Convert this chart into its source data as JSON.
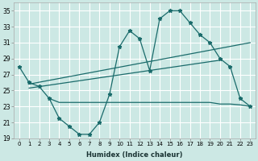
{
  "xlabel": "Humidex (Indice chaleur)",
  "x": [
    0,
    1,
    2,
    3,
    4,
    5,
    6,
    7,
    8,
    9,
    10,
    11,
    12,
    13,
    14,
    15,
    16,
    17,
    18,
    19,
    20,
    21,
    22,
    23
  ],
  "line1": [
    28,
    26,
    25.5,
    24,
    21.5,
    20.5,
    19.5,
    19.5,
    21,
    24.5,
    30.5,
    32.5,
    31.5,
    27.5,
    34,
    35,
    35,
    33.5,
    32,
    31,
    29,
    28,
    24,
    23
  ],
  "line2_x": [
    3,
    4,
    5,
    6,
    7,
    8,
    9,
    10,
    11,
    12,
    13,
    14,
    15,
    16,
    17,
    18,
    19,
    20,
    21,
    22,
    23
  ],
  "line2_y": [
    24,
    23.5,
    23.5,
    23.5,
    23.5,
    23.5,
    23.5,
    23.5,
    23.5,
    23.5,
    23.5,
    23.5,
    23.5,
    23.5,
    23.5,
    23.5,
    23.5,
    23.3,
    23.3,
    23.2,
    23.0
  ],
  "trend1_x": [
    1,
    23
  ],
  "trend1_y": [
    25.8,
    31.0
  ],
  "trend2_x": [
    1,
    20
  ],
  "trend2_y": [
    25.3,
    28.8
  ],
  "bg_color": "#cce8e4",
  "line_color": "#1a6b6b",
  "grid_color": "#ffffff",
  "ylim": [
    19,
    36
  ],
  "yticks": [
    19,
    21,
    23,
    25,
    27,
    29,
    31,
    33,
    35
  ],
  "xlim": [
    -0.5,
    23.5
  ]
}
